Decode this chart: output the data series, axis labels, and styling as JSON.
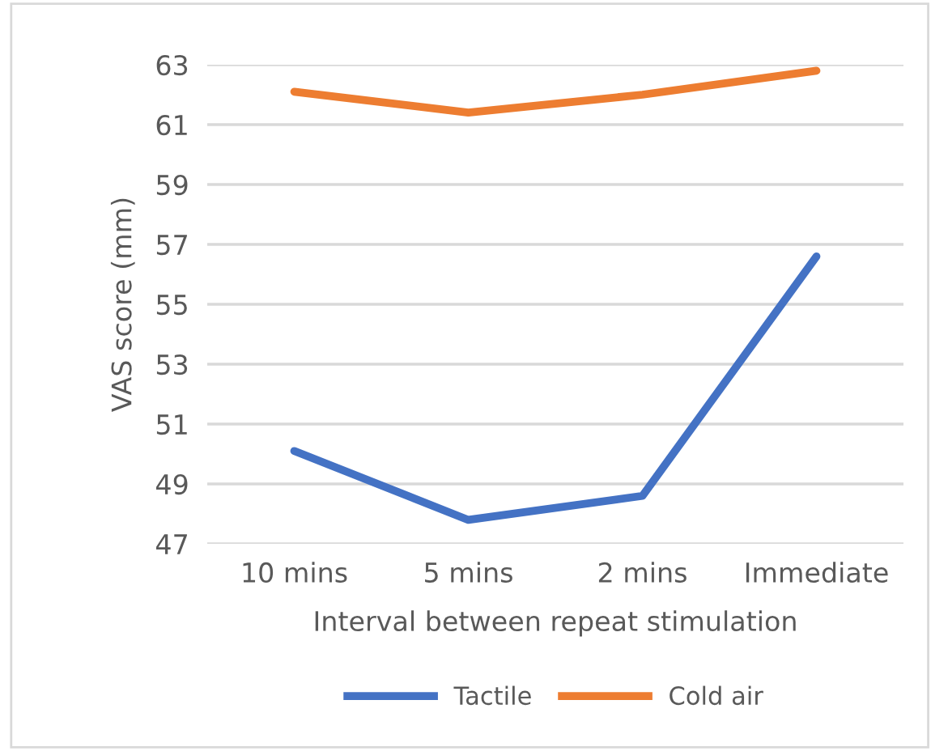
{
  "chart_data": {
    "type": "line",
    "xlabel": "Interval between repeat stimulation",
    "ylabel": "VAS score (mm)",
    "categories": [
      "10 mins",
      "5 mins",
      "2 mins",
      "Immediate"
    ],
    "series": [
      {
        "name": "Tactile",
        "color": "#4472c4",
        "values": [
          50.1,
          47.8,
          48.6,
          56.6
        ]
      },
      {
        "name": "Cold air",
        "color": "#ed7d31",
        "values": [
          62.1,
          61.4,
          62.0,
          62.8
        ]
      }
    ],
    "ylim": [
      47,
      63
    ],
    "yticks": [
      47,
      49,
      51,
      53,
      55,
      57,
      59,
      61,
      63
    ],
    "grid": "y",
    "legend": "bottom",
    "marker": "none",
    "line_style": "solid"
  }
}
